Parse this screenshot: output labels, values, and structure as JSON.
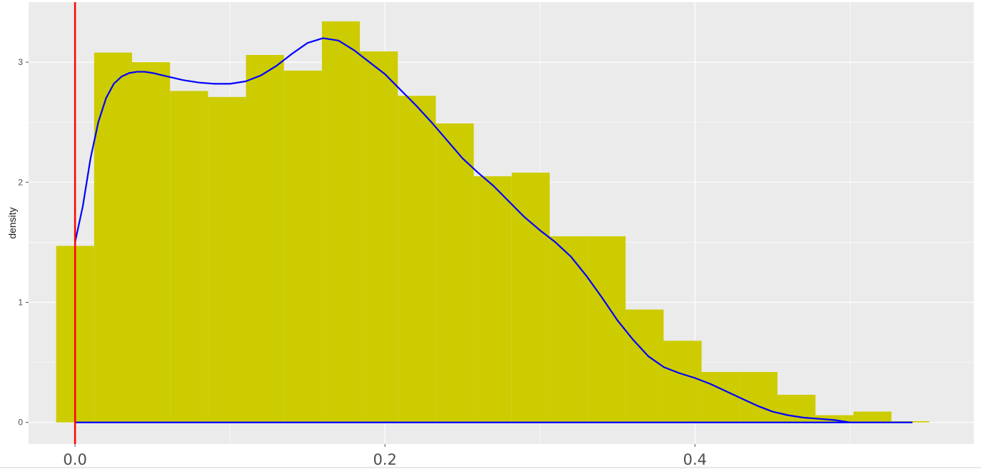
{
  "chart_data": {
    "type": "histogram",
    "title": "",
    "xlabel": "",
    "ylabel": "density",
    "xlim": [
      -0.03,
      0.58
    ],
    "ylim": [
      -0.18,
      3.5
    ],
    "x_ticks": [
      {
        "value": 0.0,
        "label": "0.0"
      },
      {
        "value": 0.2,
        "label": "0.2"
      },
      {
        "value": 0.4,
        "label": "0.4"
      }
    ],
    "y_ticks": [
      {
        "value": 0,
        "label": "0"
      },
      {
        "value": 1,
        "label": "1"
      },
      {
        "value": 2,
        "label": "2"
      },
      {
        "value": 3,
        "label": "3"
      }
    ],
    "grid": true,
    "histogram": {
      "bin_width": 0.0245,
      "bins": [
        {
          "x0": -0.0122,
          "x1": 0.0123,
          "density": 1.47
        },
        {
          "x0": 0.0123,
          "x1": 0.0368,
          "density": 3.08
        },
        {
          "x0": 0.0368,
          "x1": 0.0613,
          "density": 3.0
        },
        {
          "x0": 0.0613,
          "x1": 0.0858,
          "density": 2.76
        },
        {
          "x0": 0.0858,
          "x1": 0.1103,
          "density": 2.71
        },
        {
          "x0": 0.1103,
          "x1": 0.1348,
          "density": 3.06
        },
        {
          "x0": 0.1348,
          "x1": 0.1593,
          "density": 2.93
        },
        {
          "x0": 0.1593,
          "x1": 0.1838,
          "density": 3.34
        },
        {
          "x0": 0.1838,
          "x1": 0.2083,
          "density": 3.09
        },
        {
          "x0": 0.2083,
          "x1": 0.2328,
          "density": 2.72
        },
        {
          "x0": 0.2328,
          "x1": 0.2573,
          "density": 2.49
        },
        {
          "x0": 0.2573,
          "x1": 0.2818,
          "density": 2.05
        },
        {
          "x0": 0.2818,
          "x1": 0.3063,
          "density": 2.08
        },
        {
          "x0": 0.3063,
          "x1": 0.3308,
          "density": 1.55
        },
        {
          "x0": 0.3308,
          "x1": 0.3553,
          "density": 1.55
        },
        {
          "x0": 0.3553,
          "x1": 0.3798,
          "density": 0.94
        },
        {
          "x0": 0.3798,
          "x1": 0.4043,
          "density": 0.68
        },
        {
          "x0": 0.4043,
          "x1": 0.4288,
          "density": 0.42
        },
        {
          "x0": 0.4288,
          "x1": 0.4533,
          "density": 0.42
        },
        {
          "x0": 0.4533,
          "x1": 0.4778,
          "density": 0.23
        },
        {
          "x0": 0.4778,
          "x1": 0.5023,
          "density": 0.06
        },
        {
          "x0": 0.5023,
          "x1": 0.5268,
          "density": 0.09
        },
        {
          "x0": 0.5268,
          "x1": 0.5513,
          "density": 0.01
        }
      ],
      "fill_color": "#CCCC00"
    },
    "density_curve": {
      "color": "#0000FF",
      "x": [
        0.0,
        0.005,
        0.01,
        0.015,
        0.02,
        0.025,
        0.03,
        0.035,
        0.04,
        0.045,
        0.05,
        0.06,
        0.07,
        0.08,
        0.09,
        0.1,
        0.11,
        0.12,
        0.13,
        0.14,
        0.15,
        0.16,
        0.17,
        0.18,
        0.19,
        0.2,
        0.21,
        0.22,
        0.23,
        0.24,
        0.25,
        0.26,
        0.27,
        0.28,
        0.29,
        0.3,
        0.31,
        0.32,
        0.33,
        0.34,
        0.35,
        0.36,
        0.37,
        0.38,
        0.39,
        0.4,
        0.41,
        0.42,
        0.43,
        0.44,
        0.45,
        0.46,
        0.47,
        0.48,
        0.49,
        0.5,
        0.51,
        0.52,
        0.53,
        0.54
      ],
      "y": [
        1.5,
        1.8,
        2.2,
        2.5,
        2.7,
        2.82,
        2.88,
        2.91,
        2.92,
        2.92,
        2.91,
        2.88,
        2.85,
        2.83,
        2.82,
        2.82,
        2.84,
        2.89,
        2.97,
        3.07,
        3.16,
        3.2,
        3.18,
        3.1,
        3.0,
        2.9,
        2.77,
        2.64,
        2.5,
        2.35,
        2.2,
        2.08,
        1.97,
        1.84,
        1.71,
        1.6,
        1.5,
        1.38,
        1.22,
        1.04,
        0.85,
        0.69,
        0.55,
        0.46,
        0.41,
        0.37,
        0.32,
        0.26,
        0.2,
        0.14,
        0.09,
        0.06,
        0.04,
        0.03,
        0.02,
        0.0,
        0.0,
        0.0,
        0.0,
        0.0
      ],
      "baseline_end_x": 0.54
    },
    "reference_line": {
      "x": 0.0,
      "color": "#FF0000"
    },
    "colors": {
      "panel_background": "#EBEBEB",
      "grid": "#FFFFFF",
      "tick_text": "#4D4D4D"
    }
  }
}
